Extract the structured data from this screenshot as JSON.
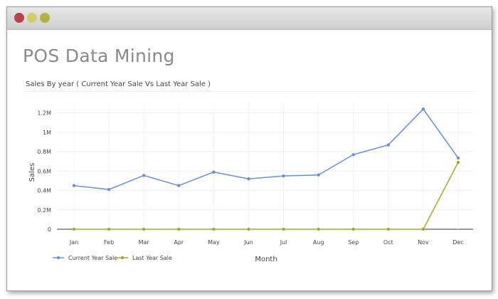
{
  "app": {
    "title": "POS Data Mining"
  },
  "card": {
    "title": "Sales By year ( Current Year Sale Vs Last Year Sale )"
  },
  "chart_data": {
    "type": "line",
    "title": "",
    "xlabel": "Month",
    "ylabel": "Sales",
    "categories": [
      "Jan",
      "Feb",
      "Mar",
      "Apr",
      "May",
      "Jun",
      "Jul",
      "Aug",
      "Sep",
      "Oct",
      "Nov",
      "Dec"
    ],
    "ylim": [
      0,
      1300000
    ],
    "yticks": [
      0,
      200000,
      400000,
      600000,
      800000,
      1000000,
      1200000
    ],
    "ytick_labels": [
      "0",
      "0.2M",
      "0.4M",
      "0.6M",
      "0.8M",
      "1M",
      "1.2M"
    ],
    "grid": true,
    "legend_position": "bottom-left",
    "series": [
      {
        "name": "Current Year Sale",
        "color": "#6b8fd6",
        "values": [
          450000,
          410000,
          555000,
          450000,
          590000,
          520000,
          550000,
          560000,
          770000,
          870000,
          1240000,
          735000
        ]
      },
      {
        "name": "Last Year Sale",
        "color": "#a6a82e",
        "values": [
          0,
          0,
          0,
          0,
          0,
          0,
          0,
          0,
          0,
          0,
          0,
          690000
        ]
      }
    ]
  }
}
